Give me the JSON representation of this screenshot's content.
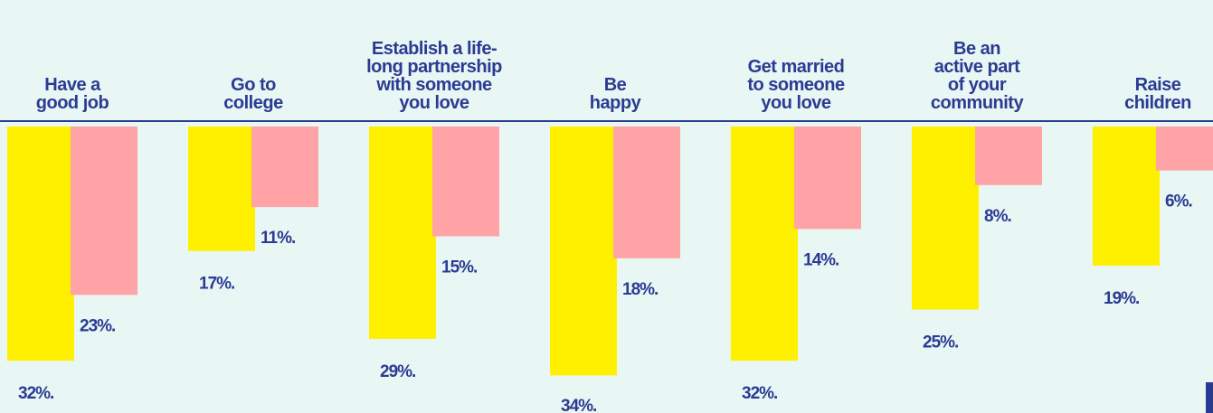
{
  "chart_data": {
    "type": "bar",
    "categories": [
      "Have a\ngood job",
      "Go to\ncollege",
      "Establish a life-\nlong partnership\nwith someone\nyou love",
      "Be\nhappy",
      "Get married\nto someone\nyou love",
      "Be an\nactive part\nof your\ncommunity",
      "Raise\nchildren"
    ],
    "series": [
      {
        "color": "#fff000",
        "values": [
          32,
          17,
          29,
          34,
          32,
          25,
          19
        ],
        "value_labels": [
          "32%.",
          "17%.",
          "29%.",
          "34%.",
          "32%.",
          "25%.",
          "19%."
        ]
      },
      {
        "color": "#ffa3a6",
        "values": [
          23,
          11,
          15,
          18,
          14,
          8,
          6
        ],
        "value_labels": [
          "23%.",
          "11%.",
          "15%.",
          "18%.",
          "14%.",
          "8%.",
          "6%."
        ]
      }
    ],
    "ylim": [
      0,
      40
    ]
  }
}
